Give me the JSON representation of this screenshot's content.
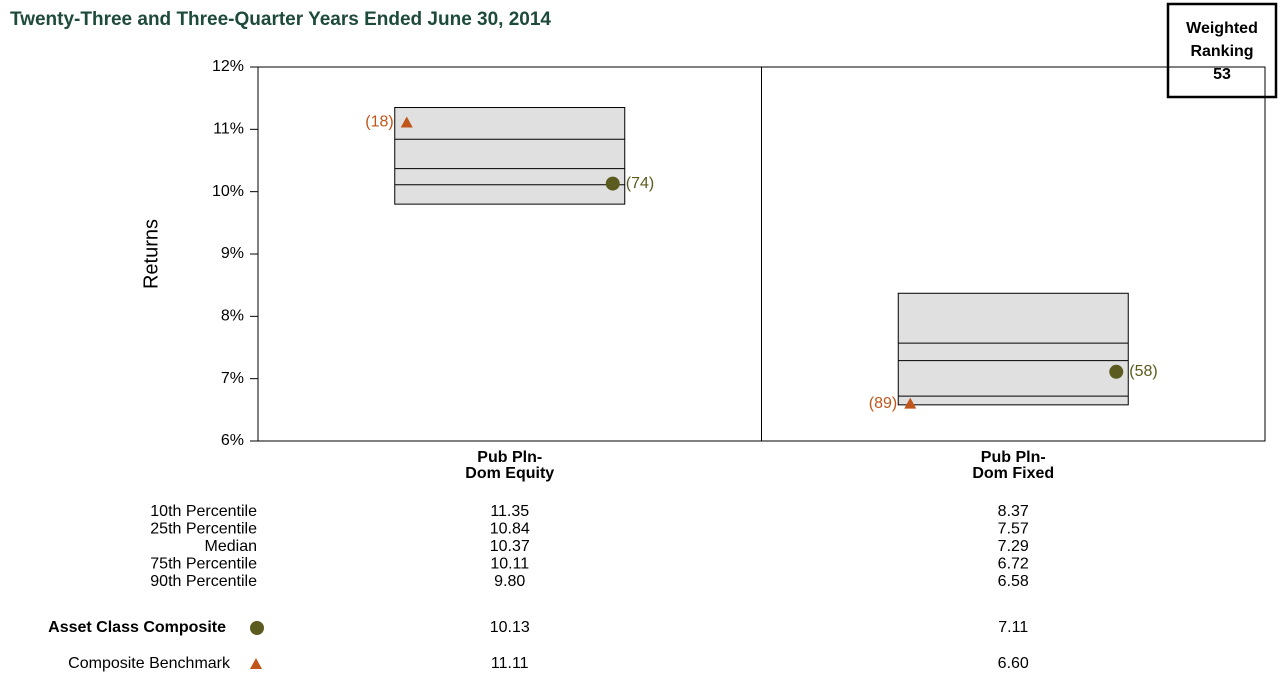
{
  "chart_data": {
    "type": "percentile_box",
    "subtitle": "Twenty-Three and Three-Quarter Years Ended June 30, 2014",
    "y_label": "Returns",
    "categories": [
      [
        "Pub Pln-",
        "Dom Equity"
      ],
      [
        "Pub Pln-",
        "Dom Fixed"
      ]
    ],
    "ylim": [
      6,
      12
    ],
    "yticks": [
      {
        "value": 6,
        "label": "6%"
      },
      {
        "value": 7,
        "label": "7%"
      },
      {
        "value": 8,
        "label": "8%"
      },
      {
        "value": 9,
        "label": "9%"
      },
      {
        "value": 10,
        "label": "10%"
      },
      {
        "value": 11,
        "label": "11%"
      },
      {
        "value": 12,
        "label": "12%"
      }
    ],
    "box_color": "#e0e0e0",
    "percentiles": [
      {
        "name": "10th Percentile",
        "values": [
          11.35,
          8.37
        ],
        "value_labels": [
          "11.35",
          "8.37"
        ]
      },
      {
        "name": "25th Percentile",
        "values": [
          10.84,
          7.57
        ],
        "value_labels": [
          "10.84",
          "7.57"
        ]
      },
      {
        "name": "Median",
        "values": [
          10.37,
          7.29
        ],
        "value_labels": [
          "10.37",
          "7.29"
        ]
      },
      {
        "name": "75th Percentile",
        "values": [
          10.11,
          6.72
        ],
        "value_labels": [
          "10.11",
          "6.72"
        ]
      },
      {
        "name": "90th Percentile",
        "values": [
          9.8,
          6.58
        ],
        "value_labels": [
          "9.80",
          "6.58"
        ]
      }
    ],
    "markers": [
      {
        "name": "Asset Class Composite",
        "shape": "circle",
        "color": "#5b5b1f",
        "values": [
          10.13,
          7.11
        ],
        "value_labels": [
          "10.13",
          "7.11"
        ],
        "ranks": [
          74,
          58
        ],
        "rank_labels": [
          "(74)",
          "(58)"
        ]
      },
      {
        "name": "Composite Benchmark",
        "shape": "triangle",
        "color": "#c0561a",
        "values": [
          11.11,
          6.6
        ],
        "value_labels": [
          "11.11",
          "6.60"
        ],
        "ranks": [
          18,
          89
        ],
        "rank_labels": [
          "(18)",
          "(89)"
        ]
      }
    ],
    "weighted_ranking": {
      "label": [
        "Weighted",
        "Ranking"
      ],
      "value": 53
    }
  }
}
